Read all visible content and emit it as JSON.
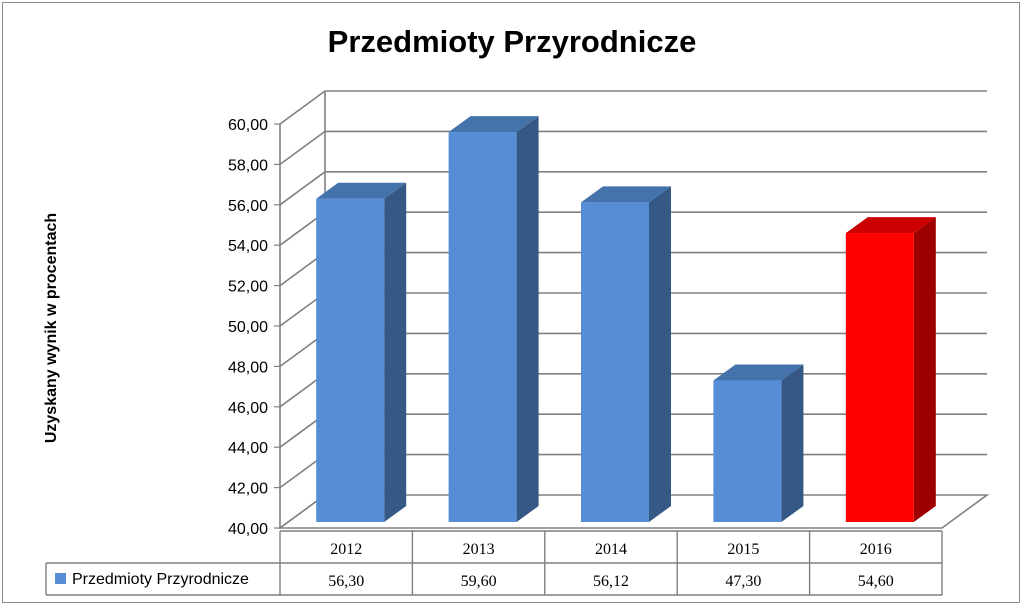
{
  "chart_data": {
    "type": "bar",
    "title": "Przedmioty Przyrodnicze",
    "ylabel": "Uzyskany wynik w procentach",
    "xlabel": "",
    "ylim": [
      40,
      60
    ],
    "y_ticks": [
      "40,00",
      "42,00",
      "44,00",
      "46,00",
      "48,00",
      "50,00",
      "52,00",
      "54,00",
      "56,00",
      "58,00",
      "60,00"
    ],
    "categories": [
      "2012",
      "2013",
      "2014",
      "2015",
      "2016"
    ],
    "series": [
      {
        "name": "Przedmioty Przyrodnicze",
        "values": [
          56.3,
          59.6,
          56.12,
          47.3,
          54.6
        ],
        "value_labels": [
          "56,30",
          "59,60",
          "56,12",
          "47,30",
          "54,60"
        ]
      }
    ],
    "grid": true,
    "legend": "data-table-left",
    "colors": {
      "bar": "#558ed5",
      "bar_highlight": "#ff0000",
      "gridline": "#808080"
    },
    "highlight_category": "2016"
  }
}
